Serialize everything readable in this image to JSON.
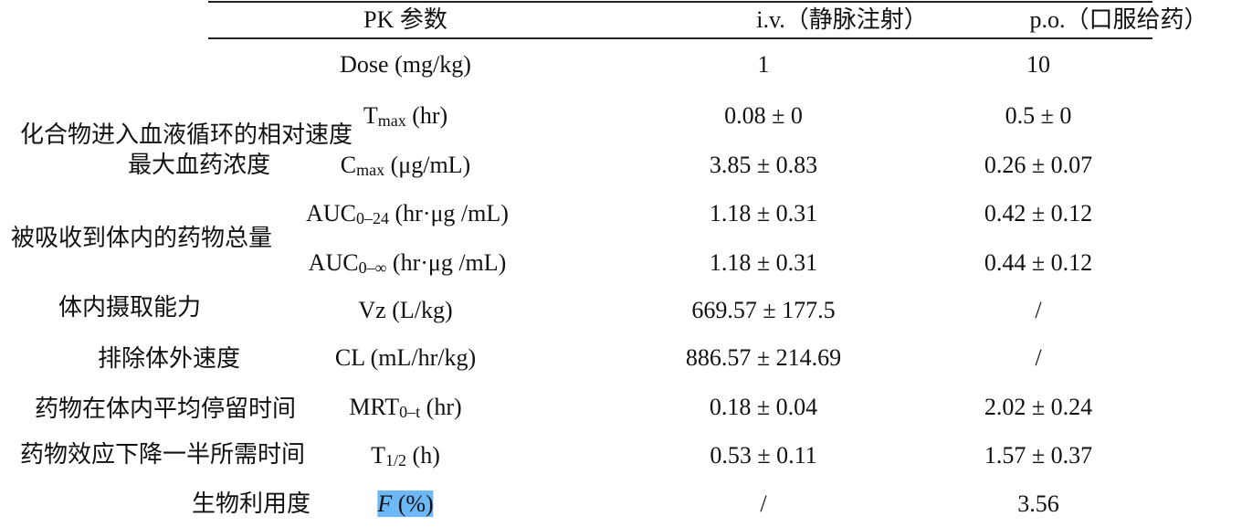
{
  "table": {
    "header": [
      "PK 参数",
      "i.v.（静脉注射）",
      "p.o.（口服给药）"
    ],
    "rows": [
      {
        "param": {
          "main": "Dose (mg/kg)"
        },
        "iv": "1",
        "po": "10"
      },
      {
        "param": {
          "main": "T",
          "sub": "max",
          "unit": "(hr)"
        },
        "iv": "0.08 ± 0",
        "po": "0.5 ± 0"
      },
      {
        "param": {
          "main": "C",
          "sub": "max",
          "unit": "(μg/mL)"
        },
        "iv": "3.85 ± 0.83",
        "po": "0.26 ± 0.07"
      },
      {
        "param": {
          "main": "AUC",
          "sub": "0–24",
          "unit": "(hr·μg /mL)"
        },
        "iv": "1.18 ± 0.31",
        "po": "0.42 ± 0.12"
      },
      {
        "param": {
          "main": "AUC",
          "sub": "0–∞",
          "unit": "(hr·μg /mL)"
        },
        "iv": "1.18 ± 0.31",
        "po": "0.44 ± 0.12"
      },
      {
        "param": {
          "main": "Vz (L/kg)"
        },
        "iv": "669.57 ± 177.5",
        "po": "/"
      },
      {
        "param": {
          "main": "CL (mL/hr/kg)"
        },
        "iv": "886.57 ± 214.69",
        "po": "/"
      },
      {
        "param": {
          "main": "MRT",
          "sub": "0–t",
          "unit": "(hr)"
        },
        "iv": "0.18 ± 0.04",
        "po": "2.02 ± 0.24"
      },
      {
        "param": {
          "main": "T",
          "sub": "1/2",
          "unit": "(h)"
        },
        "iv": "0.53 ± 0.11",
        "po": "1.57 ± 0.37"
      },
      {
        "param": {
          "main": "F",
          "unit": "(%)"
        },
        "iv": "/",
        "po": "3.56"
      }
    ],
    "notes": [
      "化合物进入血液循环的相对速度",
      "最大血药浓度",
      "被吸收到体内的药物总量",
      "体内摄取能力",
      "排除体外速度",
      "药物在体内平均停留时间",
      "药物效应下降一半所需时间",
      "生物利用度"
    ]
  }
}
